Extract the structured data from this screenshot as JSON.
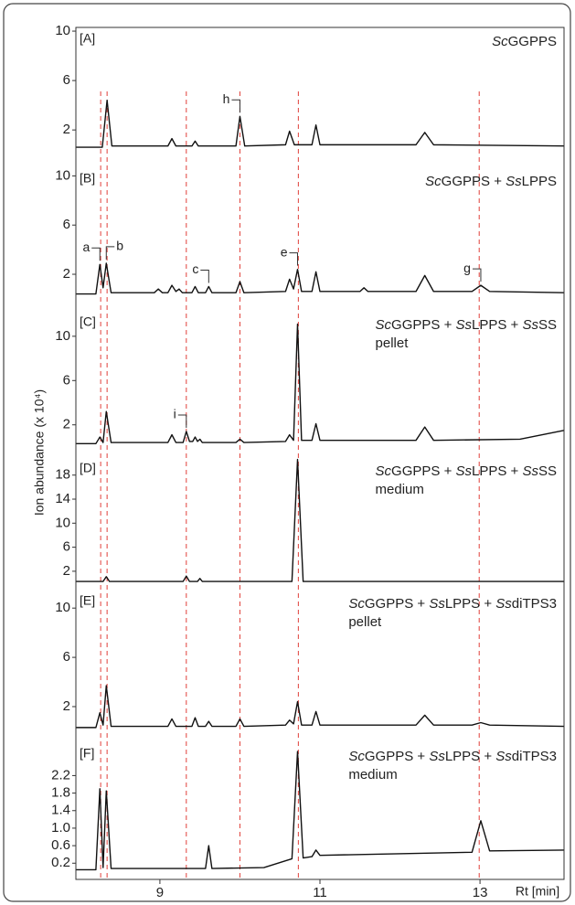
{
  "chart_data": {
    "type": "line",
    "color": "#111111",
    "ylabel": "Ion abundance (x 10⁴)",
    "xlabel": "Rt [min]",
    "xlim": [
      7.95,
      14.05
    ],
    "xticks": [
      9,
      11,
      13
    ],
    "reference_lines": [
      8.26,
      8.34,
      9.33,
      10.0,
      10.73,
      12.99
    ],
    "reference_color": "#e0403a",
    "panels": [
      {
        "label": "[A]",
        "title": "ScGGPPS",
        "ylim": [
          -0.8,
          10.3
        ],
        "yticks": [
          2,
          6,
          10
        ],
        "x": [
          7.95,
          8.28,
          8.34,
          8.4,
          9.1,
          9.15,
          9.2,
          9.4,
          9.44,
          9.48,
          9.95,
          10.0,
          10.06,
          10.57,
          10.62,
          10.68,
          10.9,
          10.95,
          11.0,
          12.2,
          12.31,
          12.42,
          14.05
        ],
        "values": [
          0.6,
          0.6,
          4.4,
          0.7,
          0.7,
          1.3,
          0.7,
          0.7,
          1.1,
          0.7,
          0.7,
          3.1,
          0.7,
          0.8,
          1.9,
          0.8,
          0.8,
          2.4,
          0.8,
          0.8,
          1.8,
          0.8,
          0.7
        ],
        "annotations": [
          {
            "text": "h",
            "x": 10.0
          }
        ]
      },
      {
        "label": "[B]",
        "title": "ScGGPPS + SsLPPS",
        "ylim": [
          -0.6,
          10.7
        ],
        "yticks": [
          2,
          6,
          10
        ],
        "x": [
          7.95,
          8.2,
          8.25,
          8.29,
          8.33,
          8.39,
          8.93,
          8.98,
          9.03,
          9.1,
          9.15,
          9.2,
          9.24,
          9.28,
          9.4,
          9.44,
          9.48,
          9.57,
          9.61,
          9.65,
          9.95,
          10.0,
          10.05,
          10.57,
          10.62,
          10.67,
          10.72,
          10.77,
          10.9,
          10.95,
          11.0,
          11.5,
          11.55,
          11.6,
          12.2,
          12.31,
          12.42,
          12.9,
          13.01,
          13.12,
          14.05
        ],
        "values": [
          0.4,
          0.4,
          2.8,
          0.9,
          2.9,
          0.5,
          0.5,
          0.8,
          0.5,
          0.5,
          1.1,
          0.6,
          0.8,
          0.5,
          0.5,
          1.0,
          0.5,
          0.5,
          1.0,
          0.5,
          0.5,
          1.4,
          0.5,
          0.6,
          1.6,
          0.8,
          2.4,
          0.6,
          0.6,
          2.2,
          0.6,
          0.6,
          0.9,
          0.6,
          0.6,
          1.9,
          0.6,
          0.6,
          1.1,
          0.6,
          0.5
        ],
        "annotations": [
          {
            "text": "a",
            "x": 8.25
          },
          {
            "text": "b",
            "x": 8.33
          },
          {
            "text": "c",
            "x": 9.61
          },
          {
            "text": "e",
            "x": 10.72
          },
          {
            "text": "g",
            "x": 13.01
          }
        ]
      },
      {
        "label": "[C]",
        "title": "ScGGPPS + SsLPPS + SsSS",
        "subtitle": "pellet",
        "ylim": [
          -0.5,
          12.3
        ],
        "yticks": [
          2,
          6,
          10
        ],
        "x": [
          7.95,
          8.2,
          8.25,
          8.29,
          8.33,
          8.39,
          9.1,
          9.15,
          9.2,
          9.29,
          9.33,
          9.37,
          9.41,
          9.44,
          9.47,
          9.5,
          9.53,
          9.95,
          10.0,
          10.05,
          10.57,
          10.62,
          10.67,
          10.72,
          10.77,
          10.9,
          10.95,
          11.0,
          12.2,
          12.31,
          12.42,
          13.5,
          14.05
        ],
        "values": [
          0.3,
          0.3,
          0.9,
          0.4,
          3.2,
          0.4,
          0.4,
          1.1,
          0.4,
          0.4,
          1.4,
          0.5,
          0.5,
          0.9,
          0.5,
          0.7,
          0.4,
          0.4,
          0.7,
          0.4,
          0.5,
          1.1,
          0.6,
          11.1,
          0.6,
          0.6,
          2.1,
          0.6,
          0.6,
          1.8,
          0.6,
          0.7,
          1.5
        ],
        "annotations": [
          {
            "text": "i",
            "x": 9.33
          }
        ]
      },
      {
        "label": "[D]",
        "title": "ScGGPPS + SsLPPS + SsSS",
        "subtitle": "medium",
        "ylim": [
          -0.6,
          21
        ],
        "yticks": [
          2,
          6,
          10,
          14,
          18
        ],
        "x": [
          7.95,
          8.29,
          8.33,
          8.37,
          9.29,
          9.33,
          9.37,
          9.47,
          9.5,
          9.53,
          10.65,
          10.72,
          10.79,
          14.05
        ],
        "values": [
          0.3,
          0.3,
          1.1,
          0.3,
          0.3,
          1.2,
          0.3,
          0.3,
          0.8,
          0.3,
          0.3,
          20.6,
          0.3,
          0.3
        ],
        "annotations": []
      },
      {
        "label": "[E]",
        "title": "ScGGPPS + SsLPPS + SsdiTPS3",
        "subtitle": "pellet",
        "ylim": [
          -0.6,
          11.5
        ],
        "yticks": [
          2,
          6,
          10
        ],
        "x": [
          7.95,
          8.2,
          8.25,
          8.29,
          8.33,
          8.39,
          9.1,
          9.15,
          9.2,
          9.4,
          9.44,
          9.48,
          9.57,
          9.61,
          9.65,
          9.95,
          10.0,
          10.05,
          10.57,
          10.62,
          10.67,
          10.72,
          10.77,
          10.9,
          10.95,
          11.0,
          12.2,
          12.31,
          12.42,
          12.9,
          13.01,
          13.12,
          14.05
        ],
        "values": [
          0.3,
          0.3,
          1.5,
          0.5,
          3.7,
          0.4,
          0.4,
          1.0,
          0.4,
          0.4,
          1.1,
          0.4,
          0.4,
          0.8,
          0.4,
          0.4,
          1.0,
          0.4,
          0.5,
          0.9,
          0.6,
          2.4,
          0.5,
          0.5,
          1.6,
          0.5,
          0.5,
          1.3,
          0.5,
          0.5,
          0.7,
          0.5,
          0.4
        ],
        "annotations": []
      },
      {
        "label": "[F]",
        "title": "ScGGPPS + SsLPPS + SsdiTPS3",
        "subtitle": "medium",
        "ylim": [
          -0.17,
          2.96
        ],
        "yticks": [
          0.2,
          0.6,
          {
            "value": 1,
            "label": "1.0"
          },
          1.4,
          1.8,
          2.2
        ],
        "x": [
          7.95,
          8.2,
          8.25,
          8.29,
          8.33,
          8.39,
          9.57,
          9.61,
          9.65,
          10.3,
          10.65,
          10.72,
          10.79,
          10.9,
          10.95,
          11.0,
          12.9,
          13.01,
          13.12,
          14.05
        ],
        "values": [
          0.05,
          0.05,
          1.9,
          0.1,
          1.85,
          0.08,
          0.08,
          0.6,
          0.08,
          0.1,
          0.3,
          2.75,
          0.32,
          0.35,
          0.5,
          0.38,
          0.45,
          1.17,
          0.48,
          0.5
        ],
        "annotations": []
      }
    ]
  }
}
